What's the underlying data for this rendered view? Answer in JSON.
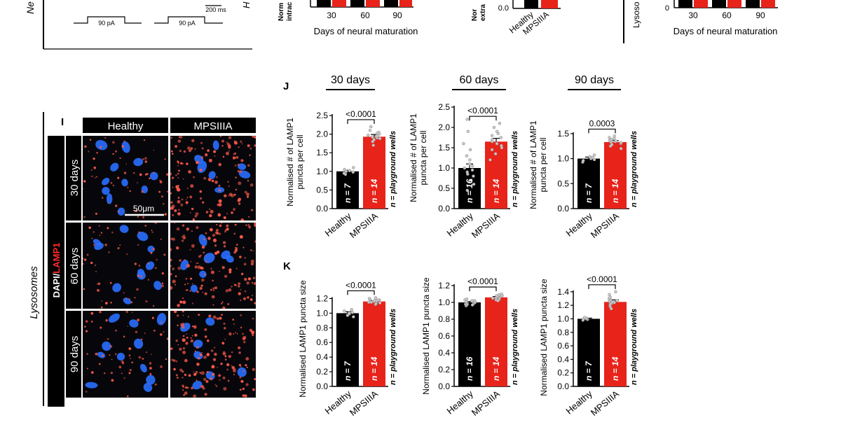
{
  "top_strip": {
    "left_label": "Ne",
    "current_1": "90 pA",
    "current_2": "90 pA",
    "scale": "200 ms",
    "mid_frag_1": "H",
    "ylabel_frag_1": "Norm\nintrac",
    "axis_title_1": "Days of neural maturation",
    "ticks_1": [
      "30",
      "60",
      "90"
    ],
    "ylabel_frag_2": "Nor\nextra",
    "zero_tick_2": "0.0",
    "cats_2": [
      "Healthy",
      "MPSIIIA"
    ],
    "ylabel_frag_3": "Lysoso",
    "axis_title_3": "Days of neural maturation",
    "ticks_3": [
      "30",
      "60",
      "90"
    ],
    "zero_tick_3": "0"
  },
  "panel_i": {
    "letter": "I",
    "side_label": "Lysosomes",
    "stain_dapi": "DAPI/",
    "stain_lamp": "LAMP1",
    "col_healthy": "Healthy",
    "col_mps": "MPSIIIA",
    "rows": [
      "30 days",
      "60 days",
      "90 days"
    ],
    "scale_bar": "50μm"
  },
  "panel_j": {
    "letter": "J"
  },
  "panel_k": {
    "letter": "K"
  },
  "colors": {
    "healthy": "#000000",
    "mpsiiia": "#e8231a",
    "dapi": "#2a6fff",
    "lamp1": "#ff5a4a"
  },
  "chart_data": [
    {
      "id": "J30",
      "type": "bar",
      "title": "30 days",
      "ylabel": "Normalised # of LAMP1 puncta per cell",
      "categories": [
        "Healthy",
        "MPSIIIA"
      ],
      "values": [
        1.0,
        1.93
      ],
      "errors": [
        0.03,
        0.06
      ],
      "n_labels": [
        "n = 7",
        "n = 14"
      ],
      "note": "n = playground wells",
      "pvalue": "<0.0001",
      "ylim": [
        0,
        2.5
      ],
      "yticks": [
        0.0,
        0.5,
        1.0,
        1.5,
        2.0,
        2.5
      ],
      "ytick_labels": [
        "0.0",
        "0.5",
        "1.0",
        "1.5",
        "2.0",
        "2.5"
      ],
      "points": [
        [
          0.92,
          0.95,
          0.98,
          1.0,
          1.02,
          1.05,
          1.1
        ],
        [
          1.7,
          1.8,
          1.85,
          1.88,
          1.9,
          1.92,
          1.94,
          1.95,
          1.97,
          2.0,
          2.02,
          2.05,
          2.1,
          2.2
        ]
      ]
    },
    {
      "id": "J60",
      "type": "bar",
      "title": "60 days",
      "ylabel": "Normalised # of LAMP1 puncta per cell",
      "categories": [
        "Healthy",
        "MPSIIIA"
      ],
      "values": [
        1.0,
        1.65
      ],
      "errors": [
        0.1,
        0.08
      ],
      "n_labels": [
        "n = 16",
        "n = 14"
      ],
      "note": "n = playground wells",
      "pvalue": "<0.0001",
      "ylim": [
        0,
        2.5
      ],
      "yticks": [
        0.0,
        0.5,
        1.0,
        1.5,
        2.0,
        2.5
      ],
      "ytick_labels": [
        "0.0",
        "0.5",
        "1.0",
        "1.5",
        "2.0",
        "2.5"
      ],
      "points": [
        [
          0.45,
          0.6,
          0.7,
          0.8,
          0.85,
          0.9,
          0.95,
          1.0,
          1.05,
          1.1,
          1.2,
          1.3,
          1.45,
          1.6,
          1.9,
          2.2
        ],
        [
          1.2,
          1.35,
          1.45,
          1.5,
          1.55,
          1.6,
          1.65,
          1.7,
          1.75,
          1.8,
          1.85,
          1.9,
          2.0,
          2.1
        ]
      ]
    },
    {
      "id": "J90",
      "type": "bar",
      "title": "90 days",
      "ylabel": "Normalised # of LAMP1 puncta per cell",
      "categories": [
        "Healthy",
        "MPSIIIA"
      ],
      "values": [
        1.0,
        1.33
      ],
      "errors": [
        0.03,
        0.03
      ],
      "n_labels": [
        "n = 7",
        "n = 14"
      ],
      "note": "n = playground wells",
      "pvalue": "0.0003",
      "ylim": [
        0,
        1.75
      ],
      "yticks": [
        0.0,
        0.5,
        1.0,
        1.5
      ],
      "ytick_labels": [
        "0.0",
        "0.5",
        "1.0",
        "1.5"
      ],
      "points": [
        [
          0.93,
          0.96,
          0.98,
          1.0,
          1.02,
          1.04,
          1.07
        ],
        [
          1.2,
          1.25,
          1.28,
          1.3,
          1.31,
          1.32,
          1.33,
          1.34,
          1.35,
          1.36,
          1.38,
          1.4,
          1.42,
          1.45
        ]
      ]
    },
    {
      "id": "K30",
      "type": "bar",
      "ylabel": "Normalised LAMP1 puncta size",
      "categories": [
        "Healthy",
        "MPSIIIA"
      ],
      "values": [
        1.0,
        1.16
      ],
      "errors": [
        0.02,
        0.01
      ],
      "n_labels": [
        "n = 7",
        "n = 14"
      ],
      "note": "n = playground wells",
      "pvalue": "<0.0001",
      "ylim": [
        0,
        1.3
      ],
      "yticks": [
        0.0,
        0.2,
        0.4,
        0.6,
        0.8,
        1.0,
        1.2
      ],
      "ytick_labels": [
        "0.0",
        "0.2",
        "0.4",
        "0.6",
        "0.8",
        "1.0",
        "1.2"
      ],
      "points": [
        [
          0.95,
          0.97,
          0.99,
          1.0,
          1.01,
          1.03,
          1.05
        ],
        [
          1.12,
          1.13,
          1.14,
          1.15,
          1.15,
          1.16,
          1.16,
          1.17,
          1.17,
          1.18,
          1.18,
          1.19,
          1.2,
          1.21
        ]
      ]
    },
    {
      "id": "K60",
      "type": "bar",
      "ylabel": "Normalised LAMP1 puncta size",
      "categories": [
        "Healthy",
        "MPSIIIA"
      ],
      "values": [
        1.0,
        1.06
      ],
      "errors": [
        0.01,
        0.01
      ],
      "n_labels": [
        "n = 16",
        "n = 14"
      ],
      "note": "n = playground wells",
      "pvalue": "<0.0001",
      "ylim": [
        0,
        1.2
      ],
      "yticks": [
        0.0,
        0.2,
        0.4,
        0.6,
        0.8,
        1.0,
        1.2
      ],
      "ytick_labels": [
        "0.0",
        "0.2",
        "0.4",
        "0.6",
        "0.8",
        "1.0",
        "1.2"
      ],
      "points": [
        [
          0.96,
          0.97,
          0.97,
          0.98,
          0.98,
          0.99,
          0.99,
          1.0,
          1.0,
          1.0,
          1.01,
          1.01,
          1.02,
          1.02,
          1.03,
          1.04
        ],
        [
          1.02,
          1.03,
          1.04,
          1.05,
          1.05,
          1.06,
          1.06,
          1.06,
          1.07,
          1.07,
          1.08,
          1.08,
          1.09,
          1.1
        ]
      ]
    },
    {
      "id": "K90",
      "type": "bar",
      "ylabel": "Normalised LAMP1 puncta size",
      "categories": [
        "Healthy",
        "MPSIIIA"
      ],
      "values": [
        1.0,
        1.25
      ],
      "errors": [
        0.01,
        0.03
      ],
      "n_labels": [
        "n = 7",
        "n = 14"
      ],
      "note": "n = playground wells",
      "pvalue": "<0.0001",
      "ylim": [
        0,
        1.45
      ],
      "yticks": [
        0.0,
        0.2,
        0.4,
        0.6,
        0.8,
        1.0,
        1.2,
        1.4
      ],
      "ytick_labels": [
        "0.0",
        "0.2",
        "0.4",
        "0.6",
        "0.8",
        "1.0",
        "1.2",
        "1.4"
      ],
      "points": [
        [
          0.98,
          0.99,
          1.0,
          1.0,
          1.0,
          1.01,
          1.02
        ],
        [
          1.15,
          1.18,
          1.2,
          1.22,
          1.23,
          1.24,
          1.25,
          1.26,
          1.27,
          1.28,
          1.3,
          1.32,
          1.36,
          1.4
        ]
      ]
    }
  ]
}
